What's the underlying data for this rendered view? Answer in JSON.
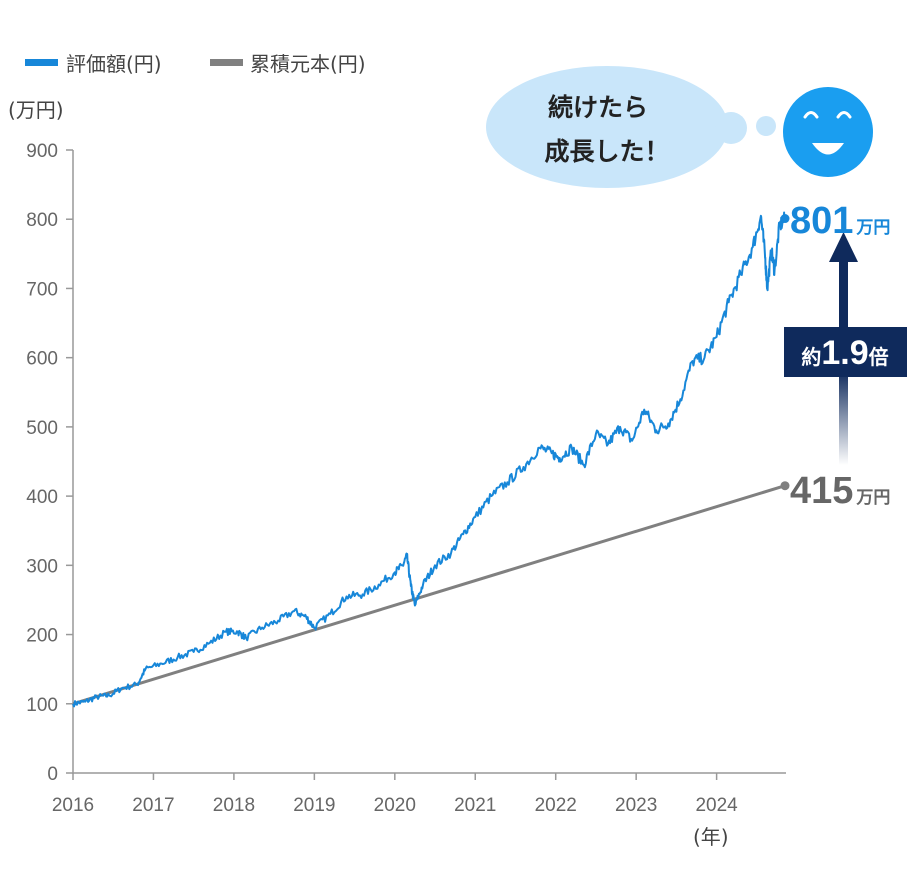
{
  "chart_data": {
    "type": "line",
    "legend": [
      "評価額(円)",
      "累積元本(円)"
    ],
    "y_unit": "(万円)",
    "x_unit": "(年)",
    "x_ticks": [
      "2016",
      "2017",
      "2018",
      "2019",
      "2020",
      "2021",
      "2022",
      "2023",
      "2024"
    ],
    "y_ticks": [
      0,
      100,
      200,
      300,
      400,
      500,
      600,
      700,
      800,
      900
    ],
    "ylim": [
      0,
      900
    ],
    "xlim": [
      2016.0,
      2024.85
    ],
    "grid": false,
    "legend_position": "top-left",
    "series": [
      {
        "name": "評価額(円)",
        "color": "#1787d9",
        "points": [
          [
            2016.0,
            100
          ],
          [
            2016.15,
            103
          ],
          [
            2016.3,
            110
          ],
          [
            2016.45,
            112
          ],
          [
            2016.6,
            122
          ],
          [
            2016.8,
            128
          ],
          [
            2016.9,
            150
          ],
          [
            2017.1,
            158
          ],
          [
            2017.3,
            167
          ],
          [
            2017.5,
            175
          ],
          [
            2017.7,
            188
          ],
          [
            2017.9,
            204
          ],
          [
            2018.05,
            204
          ],
          [
            2018.15,
            195
          ],
          [
            2018.35,
            210
          ],
          [
            2018.55,
            220
          ],
          [
            2018.75,
            234
          ],
          [
            2018.9,
            225
          ],
          [
            2019.0,
            210
          ],
          [
            2019.2,
            230
          ],
          [
            2019.4,
            255
          ],
          [
            2019.6,
            258
          ],
          [
            2019.8,
            272
          ],
          [
            2020.0,
            290
          ],
          [
            2020.1,
            300
          ],
          [
            2020.15,
            314
          ],
          [
            2020.2,
            270
          ],
          [
            2020.25,
            242
          ],
          [
            2020.35,
            272
          ],
          [
            2020.5,
            300
          ],
          [
            2020.7,
            318
          ],
          [
            2020.85,
            345
          ],
          [
            2021.0,
            370
          ],
          [
            2021.2,
            400
          ],
          [
            2021.4,
            420
          ],
          [
            2021.6,
            442
          ],
          [
            2021.8,
            470
          ],
          [
            2021.95,
            462
          ],
          [
            2022.05,
            455
          ],
          [
            2022.2,
            470
          ],
          [
            2022.35,
            445
          ],
          [
            2022.5,
            490
          ],
          [
            2022.65,
            475
          ],
          [
            2022.8,
            500
          ],
          [
            2022.95,
            480
          ],
          [
            2023.1,
            525
          ],
          [
            2023.25,
            495
          ],
          [
            2023.4,
            505
          ],
          [
            2023.55,
            540
          ],
          [
            2023.7,
            595
          ],
          [
            2023.85,
            600
          ],
          [
            2024.0,
            630
          ],
          [
            2024.15,
            680
          ],
          [
            2024.3,
            720
          ],
          [
            2024.45,
            760
          ],
          [
            2024.55,
            805
          ],
          [
            2024.6,
            750
          ],
          [
            2024.63,
            700
          ],
          [
            2024.68,
            755
          ],
          [
            2024.72,
            725
          ],
          [
            2024.78,
            790
          ],
          [
            2024.85,
            801
          ]
        ]
      },
      {
        "name": "累積元本(円)",
        "color": "#808080",
        "points": [
          [
            2016.0,
            100
          ],
          [
            2024.85,
            415
          ]
        ]
      }
    ],
    "annotations": {
      "final_value": "801",
      "final_unit": "万円",
      "principal_value": "415",
      "principal_unit": "万円",
      "ratio_prefix": "約",
      "ratio_value": "1.9",
      "ratio_suffix": "倍",
      "bubble_line1": "続けたら",
      "bubble_line2": "成長した！"
    }
  }
}
